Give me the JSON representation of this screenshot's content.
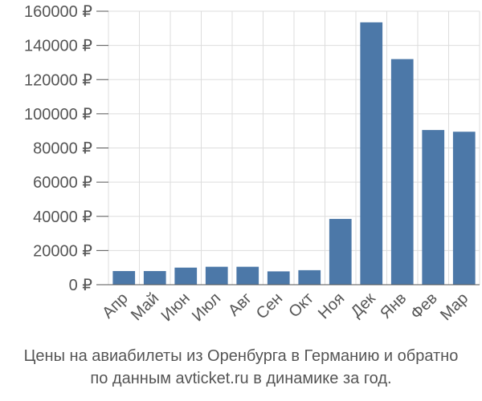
{
  "colors": {
    "bar": "#4c78a8",
    "grid": "#dddddd",
    "axis": "#555555",
    "text": "#555555"
  },
  "caption": {
    "line1": "Цены на авиабилеты из Оренбурга в Германию и обратно",
    "line2": "по данным avticket.ru в динамике за год."
  },
  "chart_data": {
    "type": "bar",
    "categories": [
      "Апр",
      "Май",
      "Июн",
      "Июл",
      "Авг",
      "Сен",
      "Окт",
      "Ноя",
      "Дек",
      "Янв",
      "Фев",
      "Мар"
    ],
    "values": [
      8000,
      8000,
      10000,
      10500,
      10500,
      7800,
      8500,
      38500,
      153500,
      132000,
      90500,
      89500
    ],
    "ylim": [
      0,
      160000
    ],
    "yticks": [
      0,
      20000,
      40000,
      60000,
      80000,
      100000,
      120000,
      140000,
      160000
    ],
    "ytick_labels": [
      "0 ₽",
      "20000 ₽",
      "40000 ₽",
      "60000 ₽",
      "80000 ₽",
      "100000 ₽",
      "120000 ₽",
      "140000 ₽",
      "160000 ₽"
    ],
    "grid": true,
    "title": "",
    "xlabel": "",
    "ylabel": ""
  }
}
